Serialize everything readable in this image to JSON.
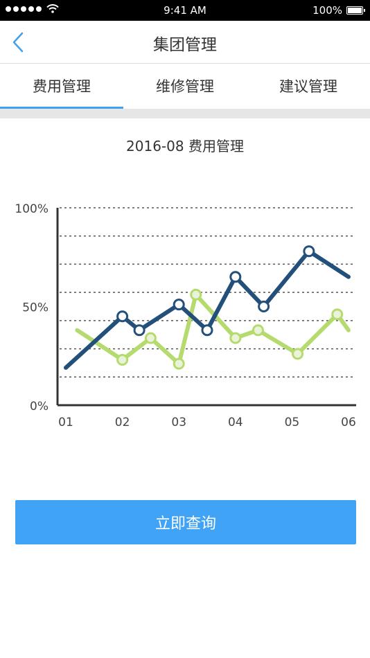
{
  "status_bar": {
    "time": "9:41 AM",
    "battery": "100%",
    "battery_level": 1.0
  },
  "nav": {
    "title": "集团管理",
    "back_icon": "chevron-left-icon"
  },
  "tabs": [
    {
      "label": "费用管理",
      "active": true
    },
    {
      "label": "维修管理",
      "active": false
    },
    {
      "label": "建议管理",
      "active": false
    }
  ],
  "chart_title": "2016-08 费用管理",
  "chart_data": {
    "type": "line",
    "x_ticks": [
      "01",
      "02",
      "03",
      "04",
      "05",
      "06"
    ],
    "y_ticks": [
      "0%",
      "50%",
      "100%"
    ],
    "ylim": [
      0,
      100
    ],
    "xlim": [
      1,
      6
    ],
    "grid": true,
    "colors": {
      "series_dark": "#234f7b",
      "series_light": "#b5db6e"
    },
    "series": [
      {
        "x": [
          1,
          2,
          2.3,
          3,
          3.5,
          4,
          4.5,
          5.3,
          6
        ],
        "values": [
          19,
          45,
          38,
          51,
          38,
          65,
          50,
          78,
          65
        ],
        "markers": [
          false,
          true,
          true,
          true,
          true,
          true,
          true,
          true,
          false
        ]
      },
      {
        "x": [
          1.2,
          2,
          2.5,
          3,
          3.3,
          4,
          4.4,
          5.1,
          5.8,
          6
        ],
        "values": [
          38,
          23,
          34,
          21,
          56,
          34,
          38,
          26,
          46,
          38
        ],
        "markers": [
          false,
          true,
          true,
          true,
          true,
          true,
          true,
          true,
          true,
          false
        ]
      }
    ]
  },
  "query_button": {
    "label": "立即查询"
  }
}
